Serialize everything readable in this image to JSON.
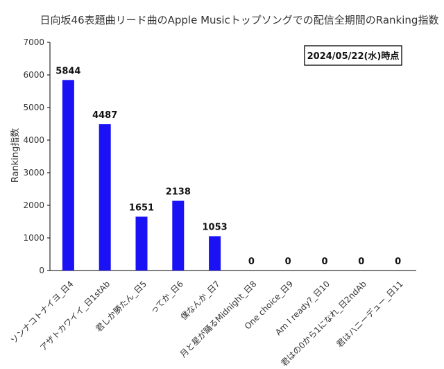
{
  "chart_data": {
    "type": "bar",
    "title": "日向坂46表題曲リード曲のApple Musicトップソングでの配信全期間のRanking指数",
    "annotation": "2024/05/22(水)時点",
    "xlabel": "",
    "ylabel": "Ranking指数",
    "ylim": [
      0,
      7000
    ],
    "yticks": [
      0,
      1000,
      2000,
      3000,
      4000,
      5000,
      6000,
      7000
    ],
    "grid": false,
    "bar_color": "#1a12f5",
    "categories": [
      "ソンナコトナイヨ_日4",
      "アザトカワイイ_日1stAb",
      "君しか勝たん_日5",
      "ってか_日6",
      "僕なんか_日7",
      "月と星が踊るMidnight_日8",
      "One choice_日9",
      "Am I ready?_日10",
      "君はの0から1になれ_日2ndAb",
      "君はハニーデュー_日11"
    ],
    "values": [
      5844,
      4487,
      1651,
      2138,
      1053,
      0,
      0,
      0,
      0,
      0
    ]
  }
}
